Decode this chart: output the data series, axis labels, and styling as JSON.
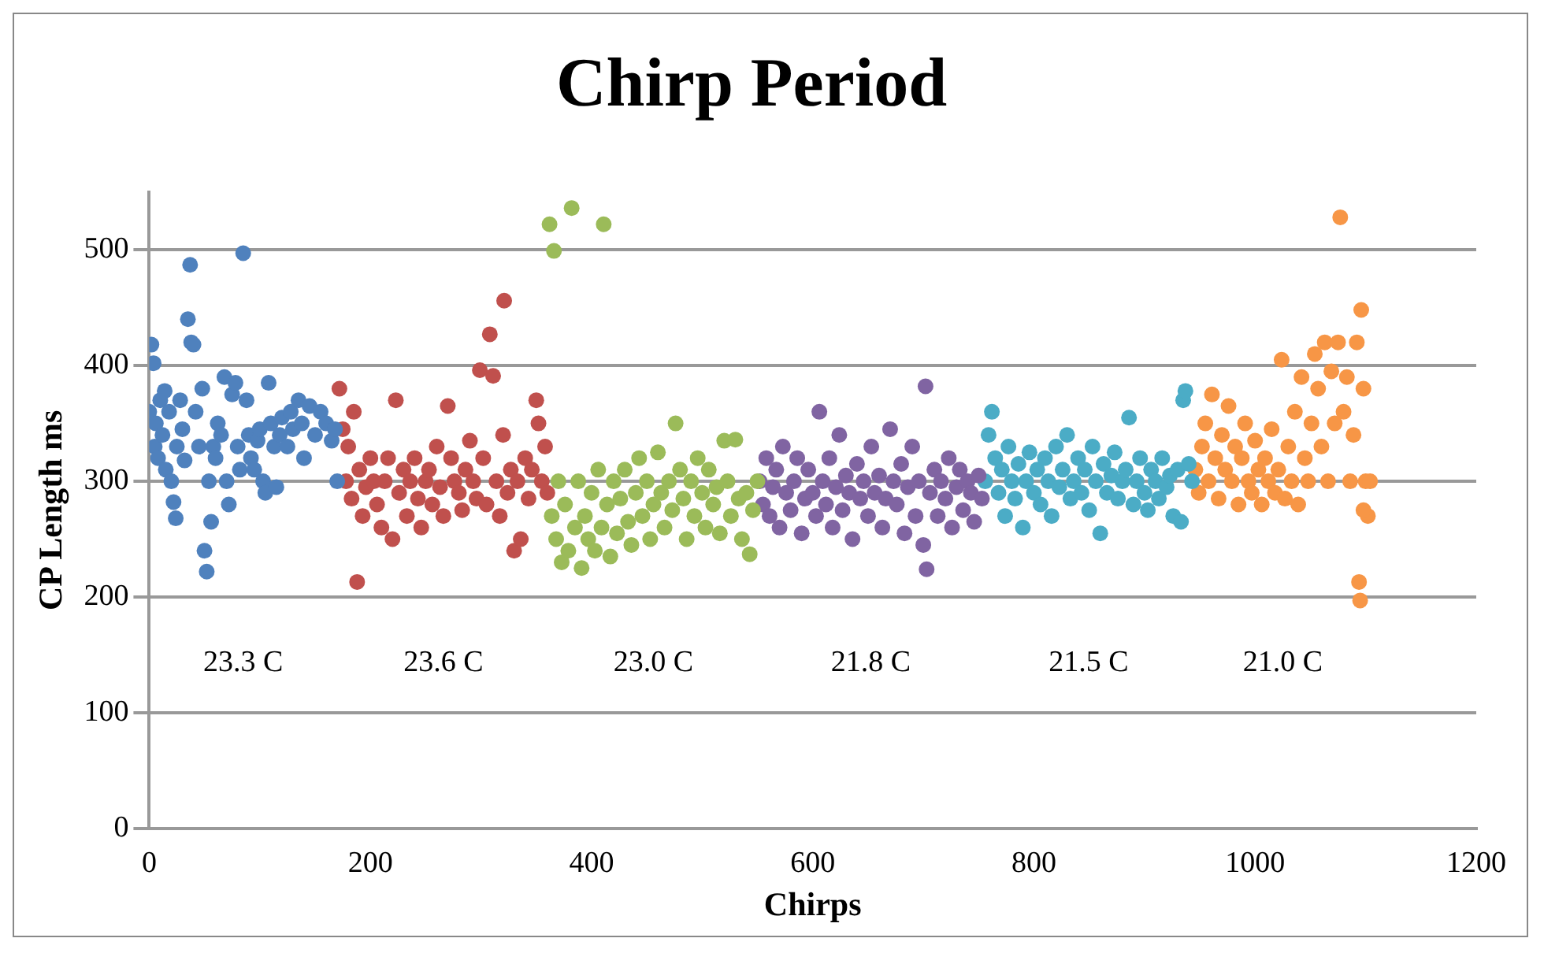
{
  "chart_data": {
    "type": "scatter",
    "title": "Chirp Period",
    "xlabel": "Chirps",
    "ylabel": "CP Length ms",
    "xlim": [
      0,
      1200
    ],
    "xticks": [
      0,
      200,
      400,
      600,
      800,
      1000,
      1200
    ],
    "ylim": [
      0,
      550
    ],
    "yticks": [
      0,
      100,
      200,
      300,
      400,
      500
    ],
    "grid": "y",
    "legend": false,
    "marker": "circle",
    "annotations": [
      "23.3 C",
      "23.6 C",
      "23.0 C",
      "21.8 C",
      "21.5 C",
      "21.0 C"
    ],
    "series": [
      {
        "color": "#4f81bd",
        "x": [
          0,
          2,
          4,
          5,
          6,
          8,
          10,
          12,
          14,
          15,
          18,
          20,
          22,
          24,
          25,
          28,
          30,
          32,
          35,
          37,
          38,
          40,
          42,
          45,
          48,
          50,
          52,
          54,
          56,
          58,
          60,
          62,
          65,
          68,
          70,
          72,
          75,
          78,
          80,
          82,
          85,
          88,
          90,
          92,
          95,
          98,
          100,
          103,
          105,
          108,
          110,
          113,
          115,
          118,
          120,
          125,
          128,
          130,
          135,
          138,
          140,
          145,
          150,
          155,
          160,
          165,
          168,
          170
        ],
        "values": [
          360,
          418,
          402,
          330,
          350,
          320,
          370,
          340,
          378,
          310,
          360,
          300,
          282,
          268,
          330,
          370,
          345,
          318,
          440,
          487,
          420,
          418,
          360,
          330,
          380,
          240,
          222,
          300,
          265,
          330,
          320,
          350,
          340,
          390,
          300,
          280,
          375,
          385,
          330,
          310,
          497,
          370,
          340,
          320,
          310,
          335,
          345,
          300,
          290,
          385,
          350,
          330,
          295,
          340,
          355,
          330,
          360,
          345,
          370,
          350,
          320,
          365,
          340,
          360,
          350,
          335,
          345,
          300
        ]
      },
      {
        "color": "#c0504d",
        "x": [
          172,
          175,
          178,
          180,
          183,
          185,
          188,
          190,
          193,
          196,
          200,
          203,
          206,
          210,
          213,
          216,
          220,
          223,
          226,
          230,
          233,
          236,
          240,
          243,
          246,
          250,
          253,
          256,
          260,
          263,
          266,
          270,
          273,
          276,
          280,
          283,
          286,
          290,
          293,
          296,
          299,
          302,
          305,
          308,
          311,
          314,
          317,
          320,
          321,
          324,
          327,
          330,
          333,
          336,
          340,
          343,
          346,
          350,
          352,
          355,
          358,
          360
        ],
        "values": [
          380,
          345,
          300,
          330,
          285,
          360,
          213,
          310,
          270,
          295,
          320,
          300,
          280,
          260,
          300,
          320,
          250,
          370,
          290,
          310,
          270,
          300,
          320,
          285,
          260,
          300,
          310,
          280,
          330,
          295,
          270,
          365,
          320,
          300,
          290,
          275,
          310,
          335,
          300,
          285,
          396,
          320,
          280,
          427,
          391,
          300,
          270,
          340,
          456,
          290,
          310,
          240,
          300,
          250,
          320,
          285,
          310,
          370,
          350,
          300,
          330,
          290
        ]
      },
      {
        "color": "#9bbb59",
        "x": [
          362,
          364,
          366,
          368,
          370,
          373,
          376,
          379,
          382,
          385,
          388,
          391,
          394,
          397,
          400,
          403,
          406,
          409,
          411,
          414,
          417,
          420,
          423,
          426,
          430,
          433,
          436,
          440,
          443,
          446,
          450,
          453,
          456,
          460,
          463,
          466,
          470,
          473,
          476,
          480,
          483,
          486,
          490,
          493,
          496,
          500,
          503,
          506,
          510,
          513,
          516,
          520,
          523,
          526,
          530,
          533,
          536,
          540,
          543,
          546,
          550
        ],
        "values": [
          522,
          270,
          499,
          250,
          300,
          230,
          280,
          240,
          536,
          260,
          300,
          225,
          270,
          250,
          290,
          240,
          310,
          260,
          522,
          280,
          235,
          300,
          255,
          285,
          310,
          265,
          245,
          290,
          320,
          270,
          300,
          250,
          280,
          325,
          290,
          260,
          300,
          275,
          350,
          310,
          285,
          250,
          300,
          270,
          320,
          290,
          260,
          310,
          280,
          295,
          255,
          335,
          300,
          270,
          336,
          285,
          250,
          290,
          237,
          275,
          300
        ]
      },
      {
        "color": "#8064a2",
        "x": [
          552,
          555,
          558,
          561,
          564,
          567,
          570,
          573,
          576,
          580,
          583,
          586,
          590,
          593,
          596,
          600,
          603,
          606,
          609,
          612,
          615,
          618,
          621,
          624,
          627,
          630,
          633,
          636,
          640,
          643,
          646,
          650,
          653,
          656,
          660,
          663,
          666,
          670,
          673,
          676,
          680,
          683,
          686,
          690,
          693,
          696,
          700,
          702,
          703,
          706,
          710,
          713,
          716,
          720,
          723,
          726,
          730,
          733,
          736,
          740,
          743,
          746,
          750,
          753
        ],
        "values": [
          300,
          280,
          320,
          270,
          295,
          310,
          260,
          330,
          290,
          275,
          300,
          320,
          255,
          285,
          310,
          290,
          270,
          360,
          300,
          280,
          320,
          260,
          295,
          340,
          275,
          305,
          290,
          250,
          315,
          285,
          300,
          270,
          330,
          290,
          305,
          260,
          285,
          345,
          300,
          280,
          315,
          255,
          295,
          330,
          270,
          300,
          245,
          382,
          224,
          290,
          310,
          270,
          300,
          285,
          320,
          260,
          295,
          310,
          275,
          300,
          290,
          265,
          305,
          285
        ]
      },
      {
        "color": "#4bacc6",
        "x": [
          756,
          759,
          762,
          765,
          768,
          771,
          774,
          777,
          780,
          783,
          786,
          790,
          793,
          796,
          800,
          803,
          806,
          810,
          813,
          816,
          820,
          823,
          826,
          830,
          833,
          836,
          840,
          843,
          846,
          850,
          853,
          856,
          860,
          863,
          866,
          870,
          873,
          876,
          880,
          883,
          886,
          890,
          893,
          896,
          900,
          903,
          906,
          910,
          913,
          916,
          920,
          923,
          926,
          930,
          933,
          935,
          937,
          940,
          943
        ],
        "values": [
          300,
          340,
          360,
          320,
          290,
          310,
          270,
          330,
          300,
          285,
          315,
          260,
          300,
          325,
          290,
          310,
          280,
          320,
          300,
          270,
          330,
          295,
          310,
          340,
          285,
          300,
          320,
          290,
          310,
          275,
          330,
          300,
          255,
          315,
          290,
          305,
          325,
          285,
          300,
          310,
          355,
          280,
          300,
          320,
          290,
          275,
          310,
          300,
          285,
          320,
          295,
          305,
          270,
          310,
          265,
          370,
          378,
          315,
          300
        ]
      },
      {
        "color": "#f79646",
        "x": [
          946,
          949,
          952,
          955,
          958,
          961,
          964,
          967,
          970,
          973,
          976,
          979,
          982,
          985,
          988,
          991,
          994,
          997,
          1000,
          1003,
          1006,
          1009,
          1012,
          1015,
          1018,
          1021,
          1024,
          1027,
          1030,
          1033,
          1036,
          1039,
          1042,
          1045,
          1048,
          1051,
          1054,
          1057,
          1060,
          1063,
          1066,
          1069,
          1072,
          1075,
          1077,
          1080,
          1083,
          1086,
          1089,
          1092,
          1094,
          1095,
          1096,
          1098,
          1100,
          1102,
          1104,
          1098
        ],
        "values": [
          310,
          290,
          330,
          350,
          300,
          375,
          320,
          285,
          340,
          310,
          365,
          300,
          330,
          280,
          320,
          350,
          300,
          290,
          335,
          310,
          280,
          320,
          300,
          345,
          290,
          310,
          405,
          285,
          330,
          300,
          360,
          280,
          390,
          320,
          300,
          350,
          410,
          380,
          330,
          420,
          300,
          395,
          350,
          420,
          528,
          360,
          390,
          300,
          340,
          420,
          213,
          197,
          448,
          380,
          300,
          270,
          300,
          275
        ]
      }
    ]
  }
}
